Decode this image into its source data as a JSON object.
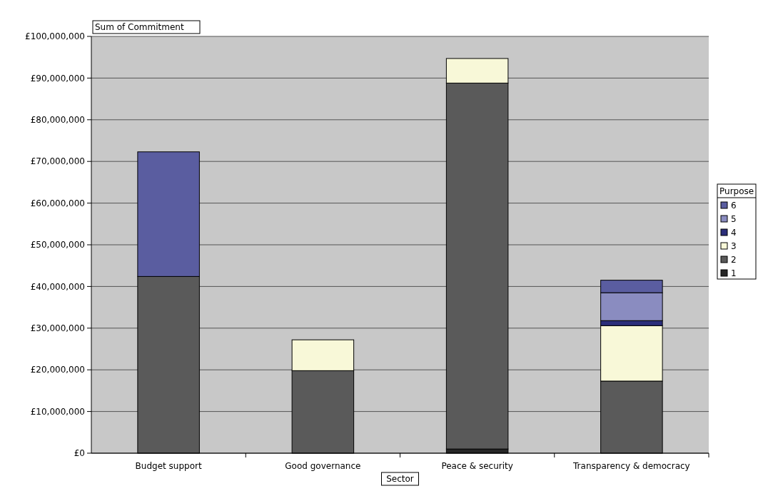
{
  "chart_data": {
    "type": "bar",
    "stacked": true,
    "ylabel": "Sum of Commitment",
    "xlabel": "Sector",
    "legend_title": "Purpose",
    "legend": "right",
    "grid": "y",
    "categories": [
      "Budget support",
      "Good governance",
      "Peace & security",
      "Transparency & democracy"
    ],
    "series": [
      {
        "name": "1",
        "color": "#262626",
        "values": [
          0,
          0,
          1000000,
          0
        ]
      },
      {
        "name": "2",
        "color": "#5a5a5a",
        "values": [
          42400000,
          19800000,
          87800000,
          17300000
        ]
      },
      {
        "name": "3",
        "color": "#f8f8d8",
        "values": [
          0,
          7400000,
          5900000,
          13300000
        ]
      },
      {
        "name": "4",
        "color": "#2b2e7a",
        "values": [
          0,
          0,
          0,
          1200000
        ]
      },
      {
        "name": "5",
        "color": "#8a8cc0",
        "values": [
          0,
          0,
          0,
          6700000
        ]
      },
      {
        "name": "6",
        "color": "#5a5da0",
        "values": [
          29900000,
          0,
          0,
          3000000
        ]
      }
    ],
    "ylim": [
      0,
      100000000
    ],
    "yticks": [
      {
        "value": 0,
        "label": "£0"
      },
      {
        "value": 10000000,
        "label": "£10,000,000"
      },
      {
        "value": 20000000,
        "label": "£20,000,000"
      },
      {
        "value": 30000000,
        "label": "£30,000,000"
      },
      {
        "value": 40000000,
        "label": "£40,000,000"
      },
      {
        "value": 50000000,
        "label": "£50,000,000"
      },
      {
        "value": 60000000,
        "label": "£60,000,000"
      },
      {
        "value": 70000000,
        "label": "£70,000,000"
      },
      {
        "value": 80000000,
        "label": "£80,000,000"
      },
      {
        "value": 90000000,
        "label": "£90,000,000"
      },
      {
        "value": 100000000,
        "label": "£100,000,000"
      }
    ]
  }
}
